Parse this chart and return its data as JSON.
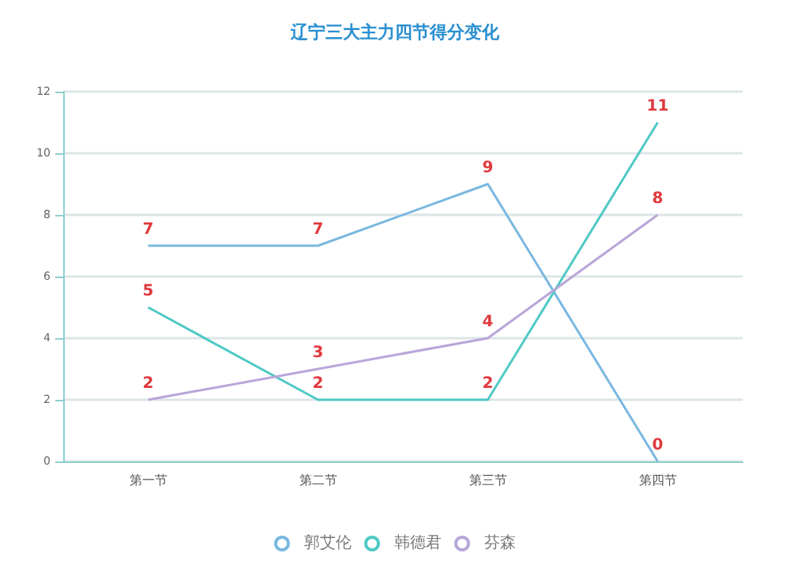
{
  "chart_data": {
    "type": "line",
    "title": "辽宁三大主力四节得分变化",
    "categories": [
      "第一节",
      "第二节",
      "第三节",
      "第四节"
    ],
    "series": [
      {
        "name": "郭艾伦",
        "color": "#7ab8e0",
        "values": [
          7,
          7,
          9,
          0
        ]
      },
      {
        "name": "韩德君",
        "color": "#4fc9c6",
        "values": [
          5,
          2,
          2,
          11
        ]
      },
      {
        "name": "芬森",
        "color": "#b9a6d8",
        "values": [
          2,
          3,
          4,
          8
        ]
      }
    ],
    "ylim": [
      0,
      12
    ],
    "yticks": [
      0,
      2,
      4,
      6,
      8,
      10,
      12
    ],
    "grid": "y",
    "legend": "bottom",
    "marker": "none",
    "data_labels": true
  }
}
